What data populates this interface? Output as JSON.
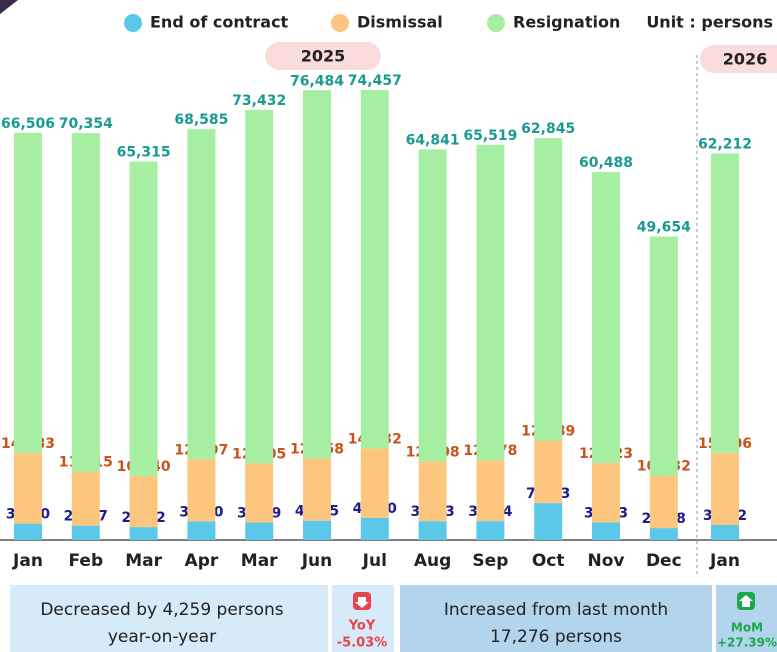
{
  "chart_data": {
    "type": "stacked_bar",
    "unit_label": "Unit : persons",
    "year_labels": [
      "2025",
      "2026"
    ],
    "categories": [
      "Jan",
      "Feb",
      "Mar",
      "Apr",
      "Mar",
      "Jun",
      "Jul",
      "Aug",
      "Sep",
      "Oct",
      "Nov",
      "Dec",
      "Jan"
    ],
    "series": [
      {
        "name": "End of contract",
        "color": "#5bc8ea",
        "label_color": "#1c1c8c",
        "values": [
          3410,
          2987,
          2682,
          3880,
          3639,
          4015,
          4620,
          3913,
          3924,
          7663,
          3663,
          2478,
          3122
        ],
        "value_labels": [
          "3,410",
          "2,987",
          "2,682",
          "3,880",
          "3,639",
          "4,015",
          "4,620",
          "3,913",
          "3,924",
          "7,663",
          "3,663",
          "2,478",
          "3,122"
        ]
      },
      {
        "name": "Dismissal",
        "color": "#fcc67e",
        "label_color": "#c8521e",
        "values": [
          14683,
          11215,
          10640,
          12897,
          12305,
          12958,
          14432,
          12408,
          12678,
          12989,
          12323,
          10932,
          15006
        ],
        "value_labels": [
          "14,683",
          "11,215",
          "10,640",
          "12,897",
          "12,305",
          "12,958",
          "14,432",
          "12,408",
          "12,678",
          "12,989",
          "12,323",
          "10,932",
          "15,006"
        ]
      },
      {
        "name": "Resignation",
        "color": "#a6eea2",
        "label_color": "#1a9a90",
        "values": [
          66506,
          70354,
          65315,
          68585,
          73432,
          76484,
          74457,
          64841,
          65519,
          62845,
          60488,
          49654,
          62212
        ],
        "value_labels": [
          "66,506",
          "70,354",
          "65,315",
          "68,585",
          "73,432",
          "76,484",
          "74,457",
          "64,841",
          "65,519",
          "62,845",
          "60,488",
          "49,654",
          "62,212"
        ]
      }
    ],
    "summary": {
      "yoy_text": [
        "Decreased by 4,259 persons",
        "year-on-year"
      ],
      "yoy_badge": [
        "YoY",
        "-5.03%"
      ],
      "mom_text": [
        "Increased from last month",
        "17,276 persons"
      ],
      "mom_badge": [
        "MoM",
        "+27.39%"
      ]
    }
  }
}
